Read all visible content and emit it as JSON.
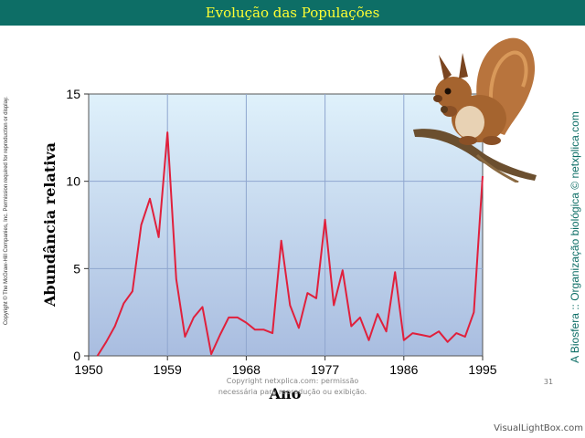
{
  "header": {
    "title": "Evolução das Populações"
  },
  "side": {
    "copyright": "Copyright © The McGraw-Hill Companies, Inc. Permission required for reproduction or display.",
    "credit": "A Biosfera :: Organização biológica © netxplica.com"
  },
  "footer": {
    "line1": "Copyright netxplica.com: permissão",
    "line2": "necessária para reprodução ou exibição.",
    "page": "31",
    "watermark": "VisualLightBox.com"
  },
  "colors": {
    "header_bg": "#0d6e66",
    "header_text": "#ffff33",
    "series": "#e0203c",
    "plot_top": "#dff1fb",
    "plot_bottom": "#a9bde0"
  },
  "illustration": {
    "icon": "squirrel-icon"
  },
  "chart_data": {
    "type": "line",
    "title": "",
    "xlabel": "Ano",
    "ylabel": "Abundância relativa",
    "xlim": [
      1950,
      1995
    ],
    "ylim": [
      0,
      15
    ],
    "xticks": [
      1950,
      1959,
      1968,
      1977,
      1986,
      1995
    ],
    "yticks": [
      0,
      5,
      10,
      15
    ],
    "grid": true,
    "series": [
      {
        "x": [
          1951,
          1952,
          1953,
          1954,
          1955,
          1956,
          1957,
          1958,
          1959,
          1960,
          1961,
          1962,
          1963,
          1964,
          1965,
          1966,
          1967,
          1968,
          1969,
          1970,
          1971,
          1972,
          1973,
          1974,
          1975,
          1976,
          1977,
          1978,
          1979,
          1980,
          1981,
          1982,
          1983,
          1984,
          1985,
          1986,
          1987,
          1988,
          1989,
          1990,
          1991,
          1992,
          1993,
          1994,
          1995
        ],
        "y": [
          0.0,
          0.8,
          1.7,
          3.0,
          3.7,
          7.5,
          9.0,
          6.8,
          12.8,
          4.4,
          1.1,
          2.2,
          2.8,
          0.1,
          1.2,
          2.2,
          2.2,
          1.9,
          1.5,
          1.5,
          1.3,
          6.6,
          2.9,
          1.6,
          3.6,
          3.3,
          7.8,
          2.9,
          4.9,
          1.7,
          2.2,
          0.9,
          2.4,
          1.4,
          4.8,
          0.9,
          1.3,
          1.2,
          1.1,
          1.4,
          0.8,
          1.3,
          1.1,
          2.5,
          10.3
        ]
      }
    ]
  }
}
